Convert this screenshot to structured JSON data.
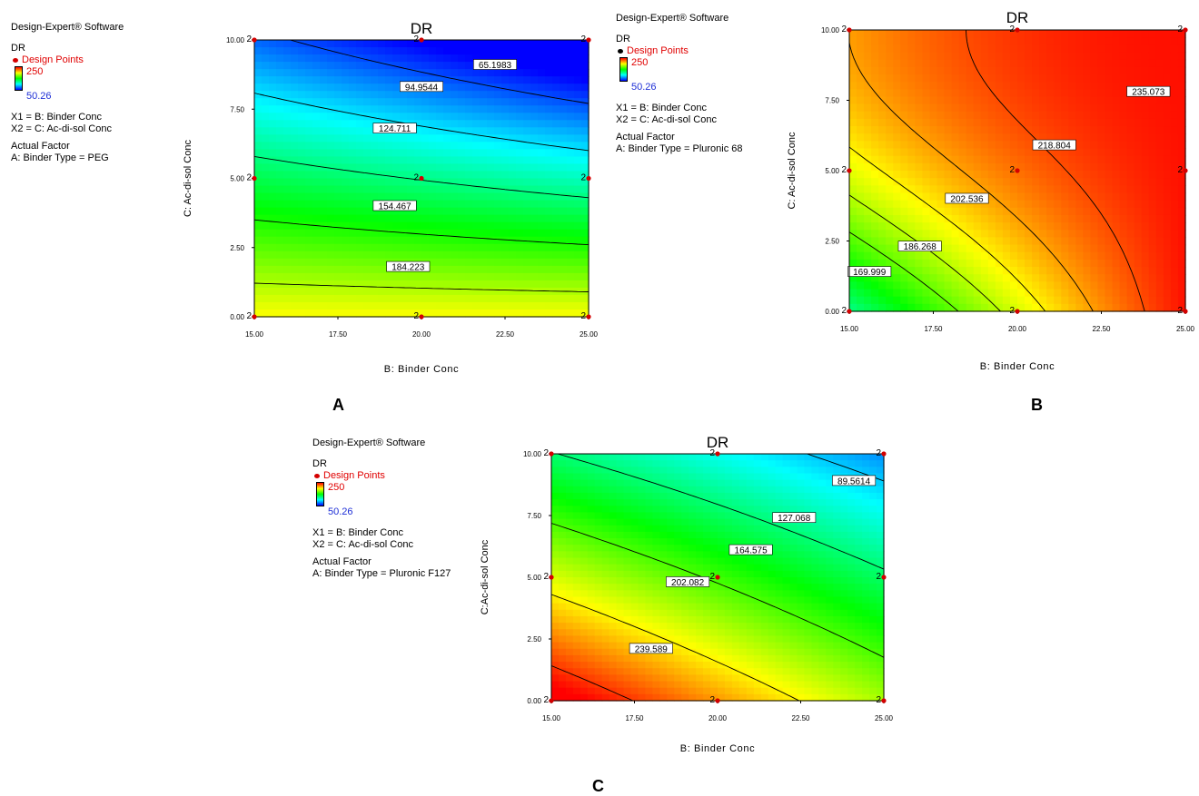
{
  "panels": [
    {
      "letter": "A",
      "legend": {
        "software": "Design-Expert® Software",
        "response": "DR",
        "design_points": "Design Points",
        "high": "250",
        "low": "50.26",
        "x1": "X1 = B: Binder Conc",
        "x2": "X2 = C: Ac-di-sol Conc",
        "actual_factor": "Actual Factor",
        "factor_value": "A: Binder Type = PEG",
        "dot_color": "#d40000"
      }
    },
    {
      "letter": "B",
      "legend": {
        "software": "Design-Expert® Software",
        "response": "DR",
        "design_points": "Design Points",
        "high": "250",
        "low": "50.26",
        "x1": "X1 = B: Binder Conc",
        "x2": "X2 = C: Ac-di-sol Conc",
        "actual_factor": "Actual Factor",
        "factor_value": "A: Binder Type = Pluronic 68",
        "dot_color": "#000000"
      }
    },
    {
      "letter": "C",
      "legend": {
        "software": "Design-Expert® Software",
        "response": "DR",
        "design_points": "Design Points",
        "high": "250",
        "low": "50.26",
        "x1": "X1 = B: Binder Conc",
        "x2": "X2 = C: Ac-di-sol Conc",
        "actual_factor": "Actual Factor",
        "factor_value": "A: Binder Type = Pluronic F127",
        "dot_color": "#d40000"
      }
    }
  ],
  "chart_data": [
    {
      "type": "heatmap",
      "title": "DR",
      "xlabel": "B: Binder Conc",
      "ylabel": "C: Ac-di-sol Conc",
      "xticks": [
        "15.00",
        "17.50",
        "20.00",
        "22.50",
        "25.00"
      ],
      "yticks": [
        "0.00",
        "2.50",
        "5.00",
        "7.50",
        "10.00"
      ],
      "xlim": [
        15,
        25
      ],
      "ylim": [
        0,
        10
      ],
      "color_range": [
        50.26,
        250
      ],
      "contour_labels": [
        "65.1983",
        "94.9544",
        "124.711",
        "154.467",
        "184.223"
      ],
      "design_points": [
        {
          "x": 15,
          "y": 10,
          "label": "2"
        },
        {
          "x": 20,
          "y": 10,
          "label": "2"
        },
        {
          "x": 25,
          "y": 10,
          "label": "2"
        },
        {
          "x": 15,
          "y": 5,
          "label": "2"
        },
        {
          "x": 20,
          "y": 5,
          "label": "2"
        },
        {
          "x": 25,
          "y": 5,
          "label": "2"
        },
        {
          "x": 15,
          "y": 0,
          "label": "2"
        },
        {
          "x": 20,
          "y": 0,
          "label": "2"
        },
        {
          "x": 25,
          "y": 0,
          "label": "2"
        }
      ]
    },
    {
      "type": "heatmap",
      "title": "DR",
      "xlabel": "B: Binder Conc",
      "ylabel": "C: Ac-di-sol Conc",
      "xticks": [
        "15.00",
        "17.50",
        "20.00",
        "22.50",
        "25.00"
      ],
      "yticks": [
        "0.00",
        "2.50",
        "5.00",
        "7.50",
        "10.00"
      ],
      "xlim": [
        15,
        25
      ],
      "ylim": [
        0,
        10
      ],
      "color_range": [
        50.26,
        250
      ],
      "contour_labels": [
        "235.073",
        "218.804",
        "202.536",
        "186.268",
        "169.999"
      ],
      "design_points": [
        {
          "x": 15,
          "y": 10,
          "label": "2"
        },
        {
          "x": 20,
          "y": 10,
          "label": "2"
        },
        {
          "x": 25,
          "y": 10,
          "label": "2"
        },
        {
          "x": 15,
          "y": 5,
          "label": "2"
        },
        {
          "x": 20,
          "y": 5,
          "label": "2"
        },
        {
          "x": 25,
          "y": 5,
          "label": "2"
        },
        {
          "x": 15,
          "y": 0,
          "label": "2"
        },
        {
          "x": 20,
          "y": 0,
          "label": "2"
        },
        {
          "x": 25,
          "y": 0,
          "label": "2"
        }
      ]
    },
    {
      "type": "heatmap",
      "title": "DR",
      "xlabel": "B: Binder Conc",
      "ylabel": "C:Ac-di-sol Conc",
      "xticks": [
        "15.00",
        "17.50",
        "20.00",
        "22.50",
        "25.00"
      ],
      "yticks": [
        "0.00",
        "2.50",
        "5.00",
        "7.50",
        "10.00"
      ],
      "xlim": [
        15,
        25
      ],
      "ylim": [
        0,
        10
      ],
      "color_range": [
        50.26,
        250
      ],
      "contour_labels": [
        "89.5614",
        "127.068",
        "164.575",
        "202.082",
        "239.589"
      ],
      "design_points": [
        {
          "x": 15,
          "y": 10,
          "label": "2"
        },
        {
          "x": 20,
          "y": 10,
          "label": "2"
        },
        {
          "x": 25,
          "y": 10,
          "label": "2"
        },
        {
          "x": 15,
          "y": 5,
          "label": "2"
        },
        {
          "x": 20,
          "y": 5,
          "label": "2"
        },
        {
          "x": 25,
          "y": 5,
          "label": "2"
        },
        {
          "x": 15,
          "y": 0,
          "label": "2"
        },
        {
          "x": 20,
          "y": 0,
          "label": "2"
        },
        {
          "x": 25,
          "y": 0,
          "label": "2"
        }
      ]
    }
  ]
}
